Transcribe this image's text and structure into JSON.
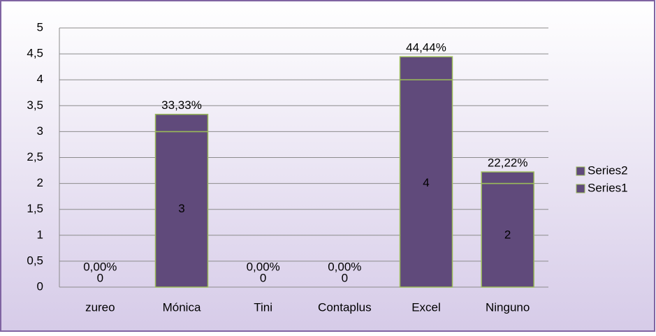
{
  "chart_data": {
    "type": "stacked_bar",
    "categories": [
      "zureo",
      "Mónica",
      "Tini",
      "Contaplus",
      "Excel",
      "Ninguno"
    ],
    "series": [
      {
        "name": "Series1",
        "color": "#604a7b",
        "values": [
          0,
          3,
          0,
          0,
          4,
          2
        ]
      },
      {
        "name": "Series2",
        "color": "#604a7b",
        "values": [
          0,
          0.3333,
          0,
          0,
          0.4444,
          0.2222
        ],
        "value_labels": [
          "0,00%",
          "33,33%",
          "0,00%",
          "0,00%",
          "44,44%",
          "22,22%"
        ]
      }
    ],
    "bar_stroke": "#9bbb59",
    "ylim": [
      0,
      5
    ],
    "yticks": [
      0,
      {
        "value": 0.5,
        "label": "0,5"
      },
      1,
      {
        "value": 1.5,
        "label": "1,5"
      },
      2,
      {
        "value": 2.5,
        "label": "2,5"
      },
      3,
      {
        "value": 3.5,
        "label": "3,5"
      },
      4,
      {
        "value": 4.5,
        "label": "4,5"
      },
      5
    ],
    "grid": true,
    "legend": "right"
  }
}
